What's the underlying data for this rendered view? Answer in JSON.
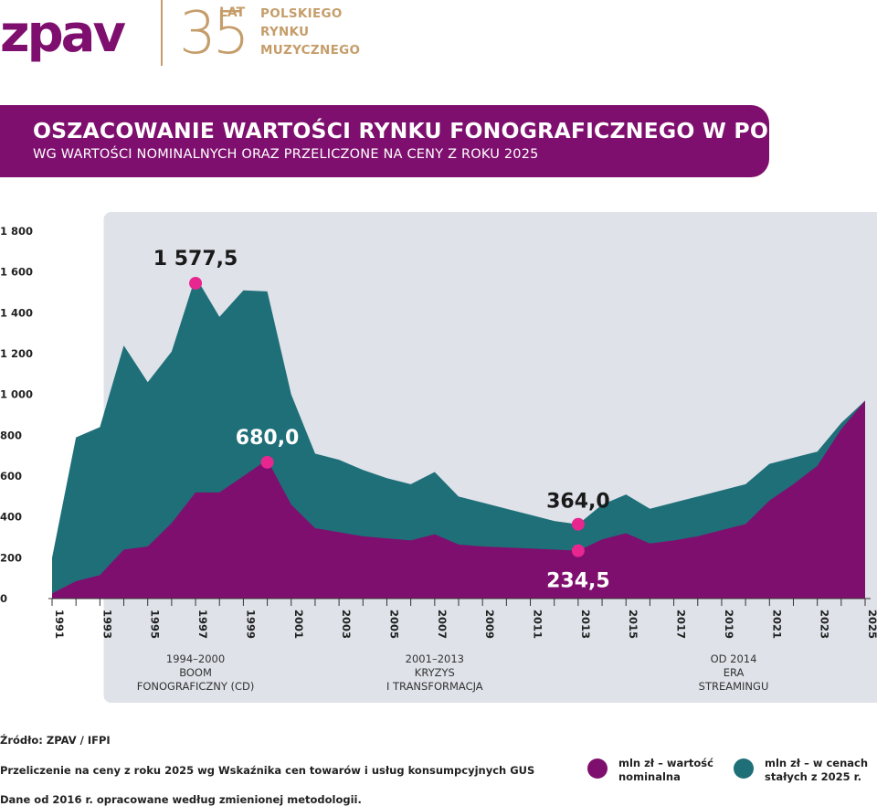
{
  "logo": {
    "brand": "zpav",
    "number": "35",
    "lat": "LAT",
    "line1": "POLSKIEGO",
    "line2": "RYNKU",
    "line3": "MUZYCZNEGO"
  },
  "title": "OSZACOWANIE WARTOŚCI RYNKU FONOGRAFICZNEGO W POLSCE",
  "subtitle": "WG WARTOŚCI NOMINALNYCH ORAZ PRZELICZONE NA CENY Z ROKU 2025",
  "colors": {
    "brand_purple": "#7f0f6e",
    "gold": "#c59d6a",
    "teal": "#1e6f78",
    "highlight_pink": "#e8268f",
    "period_band": "#dfe2e9"
  },
  "chart_data": {
    "type": "area",
    "x": [
      1991,
      1992,
      1993,
      1994,
      1995,
      1996,
      1997,
      1998,
      1999,
      2000,
      2001,
      2002,
      2003,
      2004,
      2005,
      2006,
      2007,
      2008,
      2009,
      2010,
      2011,
      2012,
      2013,
      2014,
      2015,
      2016,
      2017,
      2018,
      2019,
      2020,
      2021,
      2022,
      2023,
      2024,
      2025
    ],
    "ylim": [
      0,
      1800
    ],
    "yticks": [
      "0",
      "200",
      "400",
      "600",
      "800",
      "1 000",
      "1 200",
      "1 400",
      "1 600",
      "1 800"
    ],
    "ytick_values": [
      0,
      200,
      400,
      600,
      800,
      1000,
      1200,
      1400,
      1600,
      1800
    ],
    "xticks": [
      "1991",
      "1993",
      "1995",
      "1997",
      "1999",
      "2001",
      "2003",
      "2005",
      "2007",
      "2009",
      "2011",
      "2013",
      "2015",
      "2017",
      "2019",
      "2021",
      "2023",
      "2025"
    ],
    "series": [
      {
        "name": "mln zł – w cenach stałych z 2025 r.",
        "color": "#1e6f78",
        "values": [
          200,
          790,
          840,
          1240,
          1060,
          1210,
          1577.5,
          1380,
          1510,
          1505,
          1000,
          710,
          680,
          630,
          590,
          560,
          620,
          500,
          470,
          440,
          410,
          380,
          364,
          460,
          510,
          440,
          470,
          500,
          530,
          560,
          660,
          690,
          720,
          860,
          970
        ]
      },
      {
        "name": "mln zł – wartość nominalna",
        "color": "#7f0f6e",
        "values": [
          25,
          85,
          115,
          240,
          255,
          370,
          520,
          520,
          600,
          680,
          460,
          345,
          325,
          305,
          295,
          285,
          315,
          265,
          255,
          250,
          245,
          240,
          234.5,
          290,
          320,
          270,
          285,
          305,
          335,
          365,
          480,
          560,
          650,
          830,
          970
        ]
      }
    ],
    "annotations": [
      {
        "label": "1 577,5",
        "year": 1997,
        "value": 1577.5,
        "color": "#1a1a1a"
      },
      {
        "label": "680,0",
        "year": 2000,
        "value": 680,
        "color": "#ffffff"
      },
      {
        "label": "364,0",
        "year": 2013,
        "value": 364,
        "color": "#1a1a1a"
      },
      {
        "label": "234,5",
        "year": 2013,
        "value": 234.5,
        "color": "#ffffff"
      }
    ],
    "periods": [
      {
        "range": "1994–2000",
        "line1": "BOOM",
        "line2": "FONOGRAFICZNY (CD)",
        "start": 1994,
        "end": 2000
      },
      {
        "range": "2001–2013",
        "line1": "KRYZYS",
        "line2": "I TRANSFORMACJA",
        "start": 2001,
        "end": 2013
      },
      {
        "range": "OD 2014",
        "line1": "ERA",
        "line2": "STREAMINGU",
        "start": 2014,
        "end": 2025
      }
    ]
  },
  "footer": {
    "source": "Źródło: ZPAV / IFPI",
    "note1": "Przeliczenie na ceny z roku 2025 wg Wskaźnika cen towarów i usług konsumpcyjnych GUS",
    "note2": "Dane od 2016 r. opracowane według zmienionej metodologii."
  },
  "legend": [
    {
      "line1": "mln zł – wartość",
      "line2": "nominalna",
      "color": "#7f0f6e"
    },
    {
      "line1": "mln zł – w cenach",
      "line2": "stałych z 2025 r.",
      "color": "#1e6f78"
    }
  ]
}
